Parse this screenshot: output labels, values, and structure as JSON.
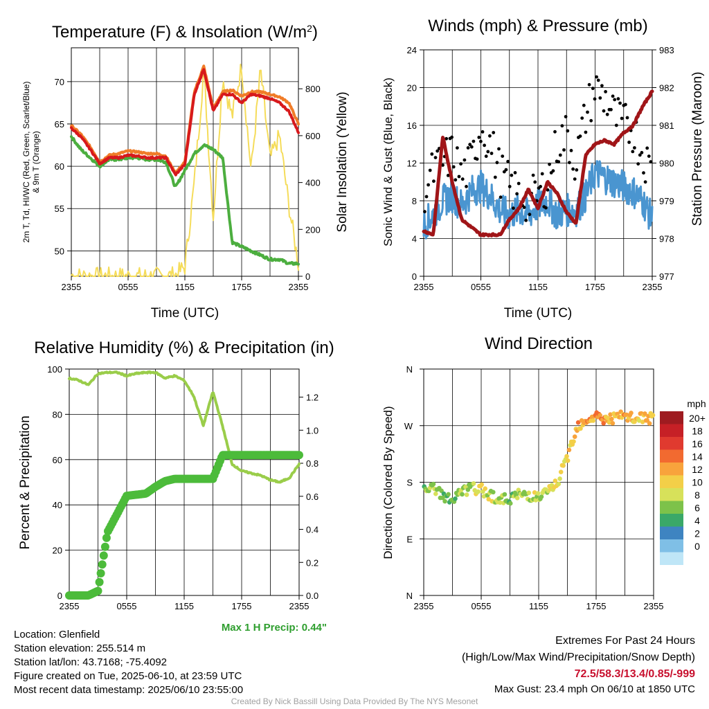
{
  "colors": {
    "temp_red": "#d7191c",
    "temp_green": "#4cae3f",
    "temp_scarlet": "#e31a1c",
    "temp_orange": "#f07c28",
    "insolation_yellow": "#f5dc5a",
    "wind_blue": "#4a95d0",
    "gust_black": "#000000",
    "pressure_maroon": "#a01518",
    "rh_light_green": "#9acd4a",
    "precip_green": "#4cbb3a",
    "extremes_red": "#c8102e",
    "precip_label_green": "#2e9e2e"
  },
  "chart_data": [
    {
      "id": "temperature",
      "type": "line",
      "title": "Temperature (F) & Insolation (W/m²)",
      "xlabel": "Time (UTC)",
      "ylabel_lines": [
        "2m T, Td, HI/WC (Red, Green, Scarlet/Blue)",
        "& 9m T (Orange)"
      ],
      "y2label": "Solar Insolation (Yellow)",
      "x_tick_labels": [
        "2355",
        "0555",
        "1155",
        "1755",
        "2355"
      ],
      "ylim": [
        47,
        74
      ],
      "yticks": [
        50,
        55,
        60,
        65,
        70
      ],
      "y2lim": [
        0,
        975
      ],
      "y2ticks": [
        0,
        200,
        400,
        600,
        800
      ],
      "x": [
        0,
        1,
        2,
        3,
        4,
        5,
        6,
        7,
        8,
        9,
        10,
        11,
        12,
        13,
        14,
        15,
        16,
        17,
        18,
        19,
        20,
        21,
        22,
        23,
        24
      ],
      "series": [
        {
          "values": [
            64.5,
            63.5,
            62,
            60.3,
            61,
            61,
            61.3,
            61.2,
            61,
            61,
            61,
            59,
            60.2,
            68.5,
            71.5,
            66.5,
            68.5,
            68.5,
            67.5,
            68.5,
            68.3,
            68,
            67.5,
            66.5,
            64
          ]
        },
        {
          "values": [
            63.5,
            62,
            61,
            60,
            60.8,
            60.8,
            61,
            61,
            60.8,
            60.8,
            60.5,
            57.5,
            59.5,
            61.5,
            62.5,
            62,
            61,
            51,
            50.5,
            50,
            49.5,
            49,
            49,
            48.5,
            48.5
          ]
        },
        {
          "values": [
            64.8,
            63.8,
            62.3,
            60.5,
            61.3,
            61.5,
            61.8,
            61.7,
            61.5,
            61.5,
            61.2,
            59.2,
            60.5,
            68.8,
            71.8,
            66.8,
            68.8,
            69,
            68.3,
            68.8,
            68.8,
            68.5,
            68.2,
            67.5,
            65
          ]
        },
        {
          "values": [
            5,
            0,
            0,
            0,
            0,
            0,
            0,
            0,
            0,
            0,
            0,
            5,
            40,
            400,
            880,
            250,
            850,
            680,
            900,
            450,
            880,
            500,
            600,
            300,
            50
          ]
        }
      ]
    },
    {
      "id": "winds",
      "type": "line",
      "title": "Winds (mph) & Pressure (mb)",
      "xlabel": "Time (UTC)",
      "ylabel": "Sonic Wind & Gust (Blue, Black)",
      "y2label": "Station Pressure (Maroon)",
      "x_tick_labels": [
        "2355",
        "0555",
        "1155",
        "1755",
        "2355"
      ],
      "ylim": [
        0,
        24
      ],
      "yticks": [
        0,
        4,
        8,
        12,
        16,
        20,
        24
      ],
      "y2lim": [
        977,
        983
      ],
      "y2ticks": [
        977,
        978,
        979,
        980,
        981,
        982,
        983
      ],
      "x": [
        0,
        1,
        2,
        3,
        4,
        5,
        6,
        7,
        8,
        9,
        10,
        11,
        12,
        13,
        14,
        15,
        16,
        17,
        18,
        19,
        20,
        21,
        22,
        23,
        24
      ],
      "series": [
        {
          "values": [
            5.5,
            6.5,
            8,
            8.5,
            7.5,
            9,
            9.5,
            8.5,
            7,
            6.5,
            7,
            6.5,
            7.5,
            8,
            6.5,
            7,
            7,
            8.5,
            11,
            10.5,
            10,
            9.5,
            9,
            8,
            6
          ]
        },
        {
          "values": [
            9,
            11,
            12,
            13,
            10.5,
            12,
            16,
            14,
            11,
            9.5,
            8.5,
            8,
            8.5,
            10,
            14,
            15,
            12,
            17,
            20,
            19,
            17,
            16,
            15.5,
            13,
            11
          ]
        },
        {
          "values": [
            978.2,
            978.1,
            980.7,
            979.5,
            978.5,
            978.3,
            978.1,
            978.1,
            978.1,
            978.5,
            978.8,
            979.3,
            978.8,
            979.5,
            979.2,
            978.7,
            978.4,
            980.2,
            980.5,
            980.6,
            980.5,
            980.8,
            981,
            981.5,
            981.9
          ]
        }
      ]
    },
    {
      "id": "humidity",
      "type": "line",
      "title": "Relative Humidity (%) & Precipitation (in)",
      "ylabel": "Percent & Precipitation",
      "x_tick_labels": [
        "2355",
        "0555",
        "1155",
        "1755",
        "2355"
      ],
      "ylim": [
        0,
        100
      ],
      "yticks": [
        0,
        20,
        40,
        60,
        80,
        100
      ],
      "y2lim": [
        0,
        1.37
      ],
      "y2ticks": [
        0.0,
        0.2,
        0.4,
        0.6,
        0.8,
        1.0,
        1.2
      ],
      "x": [
        0,
        1,
        2,
        3,
        4,
        5,
        6,
        7,
        8,
        9,
        10,
        11,
        12,
        13,
        14,
        15,
        16,
        17,
        18,
        19,
        20,
        21,
        22,
        23,
        24
      ],
      "series": [
        {
          "values": [
            96,
            95,
            93,
            98,
            98.5,
            98.5,
            97,
            98,
            98.5,
            98.5,
            96,
            97,
            95,
            88,
            75,
            90,
            75,
            58,
            55,
            54,
            53,
            51,
            50,
            52,
            58
          ]
        },
        {
          "values": [
            0,
            0,
            0,
            2,
            28,
            36,
            44,
            44.5,
            45,
            48,
            50.5,
            51.5,
            51.5,
            51.5,
            51.5,
            51.5,
            62,
            62,
            62,
            62,
            62,
            62,
            62,
            62,
            62
          ]
        }
      ],
      "note": "Max 1 H Precip: 0.44\""
    },
    {
      "id": "direction",
      "type": "scatter",
      "title": "Wind Direction",
      "ylabel": "Direction (Colored By Speed)",
      "x_tick_labels": [
        "2355",
        "0555",
        "1155",
        "1755",
        "2355"
      ],
      "y_tick_labels": [
        "N",
        "E",
        "S",
        "W",
        "N"
      ],
      "ylim": [
        0,
        360
      ],
      "legend_title": "mph",
      "legend_labels": [
        "20+",
        "18",
        "16",
        "14",
        "12",
        "10",
        "8",
        "6",
        "4",
        "2",
        "0"
      ],
      "legend_colors": [
        "#9e1b20",
        "#c62026",
        "#e03a2f",
        "#f26a30",
        "#f8a33c",
        "#f3cf48",
        "#d7e15a",
        "#7dc24a",
        "#3aa868",
        "#3e84c1",
        "#7fbfe6",
        "#bfe6f7"
      ],
      "x": [
        0,
        1,
        2,
        3,
        4,
        5,
        6,
        7,
        8,
        9,
        10,
        11,
        12,
        13,
        14,
        15,
        16,
        17,
        18,
        19,
        20,
        21,
        22,
        23,
        24
      ],
      "values": [
        165,
        170,
        160,
        150,
        165,
        170,
        168,
        160,
        150,
        155,
        160,
        160,
        155,
        165,
        180,
        220,
        270,
        280,
        285,
        280,
        282,
        285,
        280,
        283,
        280
      ],
      "speeds": [
        6,
        7,
        6,
        5,
        7,
        8,
        9,
        8,
        7,
        6,
        7,
        8,
        7,
        8,
        9,
        10,
        11,
        12,
        13,
        12,
        11,
        12,
        10,
        11,
        9
      ]
    }
  ],
  "footer": {
    "location": "Location: Glenfield",
    "elevation": "Station elevation: 255.514 m",
    "latlon": "Station lat/lon: 43.7168; -75.4092",
    "created": "Figure created on Tue, 2025-06-10, at 23:59 UTC",
    "recent": "Most recent data timestamp: 2025/06/10 23:55:00",
    "extremes_title": "Extremes For Past 24 Hours",
    "extremes_sub": "(High/Low/Max Wind/Precipitation/Snow Depth)",
    "extremes_values": "72.5/58.3/13.4/0.85/-999",
    "max_gust": "Max Gust: 23.4 mph On 06/10 at 1850 UTC",
    "credit": "Created By Nick Bassill Using Data Provided By The NYS Mesonet"
  }
}
